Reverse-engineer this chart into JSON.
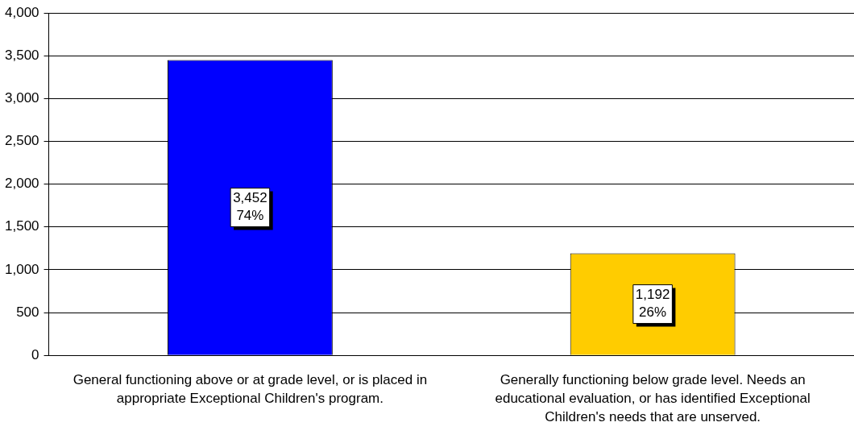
{
  "chart_data": {
    "type": "bar",
    "categories": [
      "General functioning above or at grade level, or is placed in appropriate Exceptional Children's program.",
      "Generally functioning below grade level. Needs an educational evaluation, or has identified Exceptional Children's needs that are unserved."
    ],
    "values": [
      3452,
      1192
    ],
    "colors": [
      "#0000ff",
      "#ffcc00"
    ],
    "value_labels": [
      "3,452\n74%",
      "1,192\n26%"
    ],
    "ylim": [
      0,
      4000
    ],
    "yticks": [
      {
        "value": 0,
        "label": "0"
      },
      {
        "value": 500,
        "label": "500"
      },
      {
        "value": 1000,
        "label": "1,000"
      },
      {
        "value": 1500,
        "label": "1,500"
      },
      {
        "value": 2000,
        "label": "2,000"
      },
      {
        "value": 2500,
        "label": "2,500"
      },
      {
        "value": 3000,
        "label": "3,000"
      },
      {
        "value": 3500,
        "label": "3,500"
      },
      {
        "value": 4000,
        "label": "4,000"
      }
    ],
    "grid": "y",
    "legend": false
  }
}
